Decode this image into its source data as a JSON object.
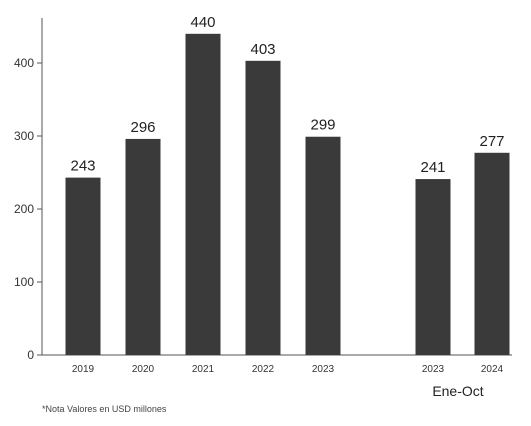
{
  "chart_data": {
    "type": "bar",
    "categories": [
      "2019",
      "2020",
      "2021",
      "2022",
      "2023",
      "2023",
      "2024"
    ],
    "values": [
      243,
      296,
      440,
      403,
      299,
      241,
      277
    ],
    "groups": [
      {
        "label": "",
        "indices": [
          0,
          1,
          2,
          3,
          4
        ]
      },
      {
        "label": "Ene-Oct",
        "indices": [
          5,
          6
        ]
      }
    ],
    "yticks": [
      0,
      100,
      200,
      300,
      400
    ],
    "ylim": [
      0,
      480
    ],
    "title": "",
    "xlabel": "",
    "ylabel": "",
    "grid": false,
    "bar_color": "#3a3a3a",
    "note": "*Nota  Valores en USD millones"
  }
}
